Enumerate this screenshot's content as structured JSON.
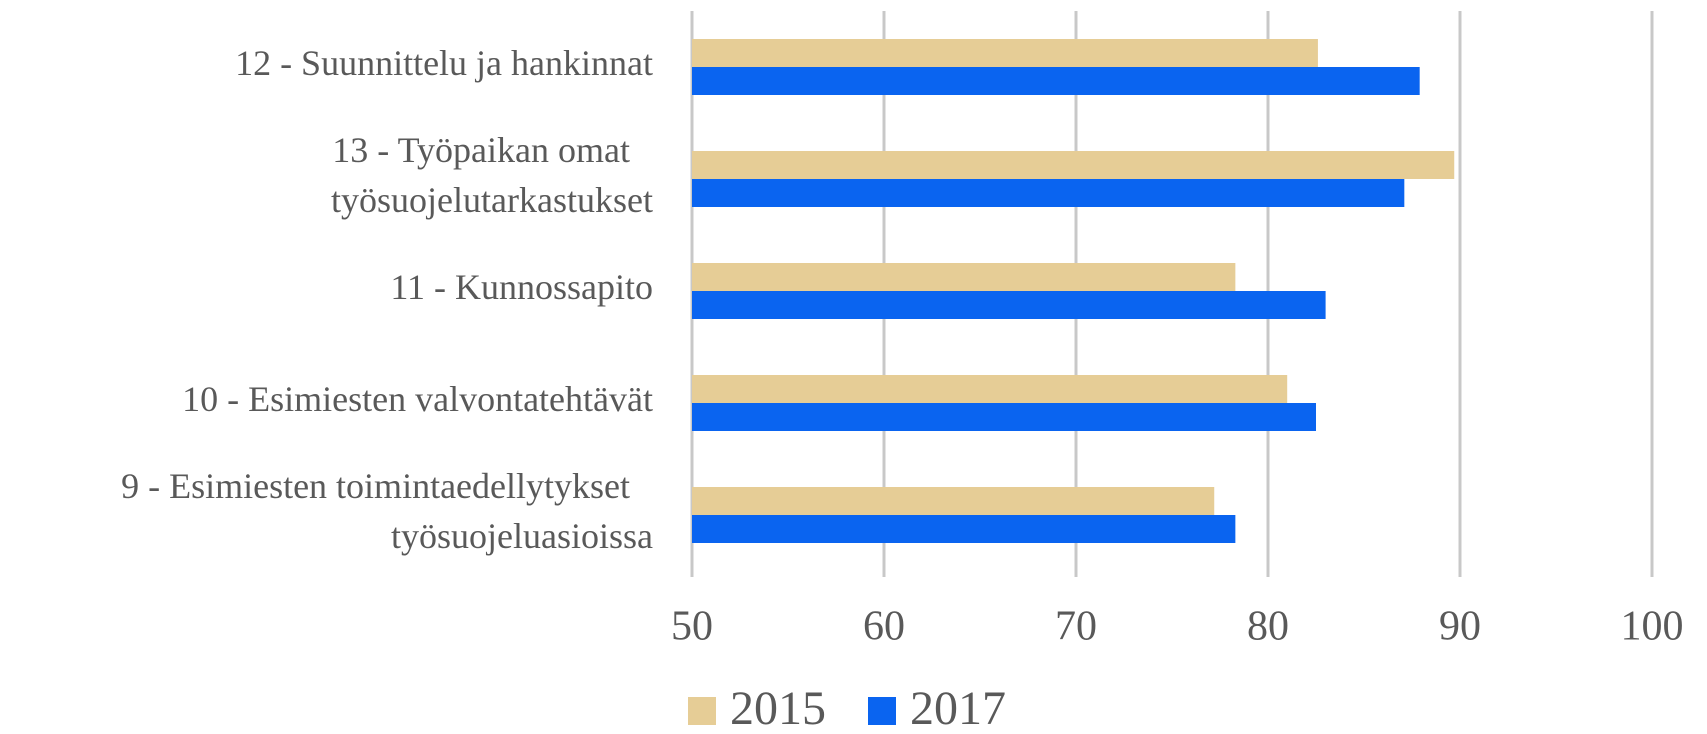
{
  "chart_data": {
    "type": "bar",
    "orientation": "horizontal",
    "categories": [
      "12 - Suunnittelu ja hankinnat",
      "13 - Työpaikan omat\ntyösuojelutarkastukset",
      "11 - Kunnossapito",
      "10 - Esimiesten valvontatehtävät",
      "9 - Esimiesten toimintaedellytykset\ntyösuojeluasioissa"
    ],
    "series": [
      {
        "name": "2015",
        "color": "#e6cd96",
        "values": [
          82.6,
          89.7,
          78.3,
          81.0,
          77.2
        ]
      },
      {
        "name": "2017",
        "color": "#0a64f0",
        "values": [
          87.9,
          87.1,
          83.0,
          82.5,
          78.3
        ]
      }
    ],
    "xlim": [
      50,
      100
    ],
    "xticks": [
      50,
      60,
      70,
      80,
      90,
      100
    ],
    "grid": true,
    "legend": "bottom"
  }
}
